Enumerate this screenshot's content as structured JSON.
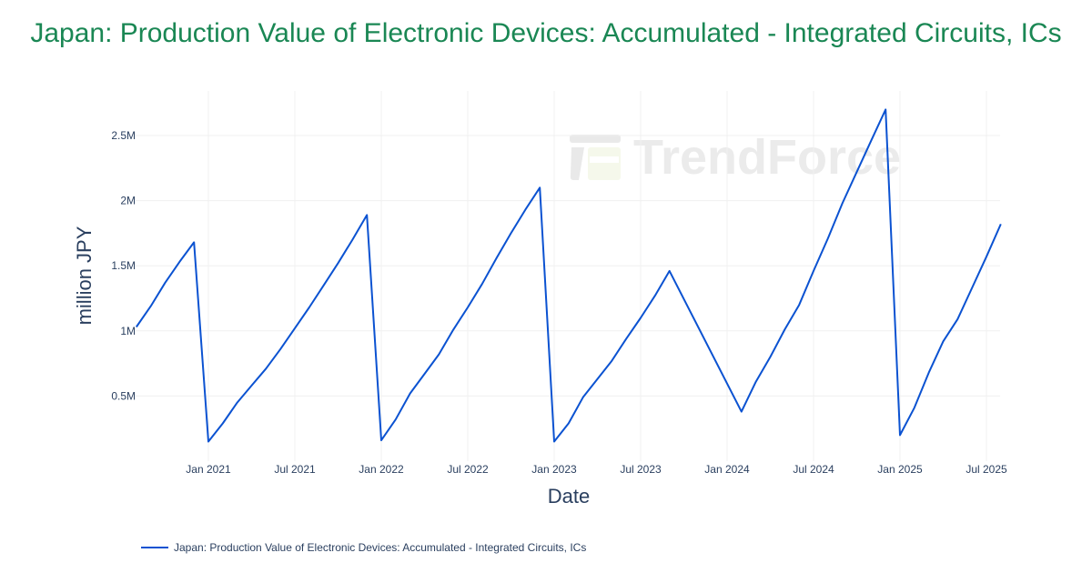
{
  "title": "Japan: Production Value of Electronic Devices: Accumulated - Integrated Circuits, ICs",
  "watermark": "TrendForce",
  "colors": {
    "title": "#1a8754",
    "line": "#0b52d1",
    "text": "#2a3f5f",
    "grid": "#f0f0f0"
  },
  "legend": {
    "label": "Japan: Production Value of Electronic Devices: Accumulated - Integrated Circuits, ICs"
  },
  "chart_data": {
    "type": "line",
    "title": "Japan: Production Value of Electronic Devices: Accumulated - Integrated Circuits, ICs",
    "xlabel": "Date",
    "ylabel": "million JPY",
    "x_ticks": [
      "Jan 2021",
      "Jul 2021",
      "Jan 2022",
      "Jul 2022",
      "Jan 2023",
      "Jul 2023",
      "Jan 2024",
      "Jul 2024",
      "Jan 2025",
      "Jul 2025"
    ],
    "y_ticks": [
      "0.5M",
      "1M",
      "1.5M",
      "2M",
      "2.5M"
    ],
    "y_tick_values": [
      500000,
      1000000,
      1500000,
      2000000,
      2500000
    ],
    "ylim": [
      0,
      2800000
    ],
    "grid": true,
    "legend_position": "bottom-left",
    "series": [
      {
        "name": "Japan: Production Value of Electronic Devices: Accumulated - Integrated Circuits, ICs",
        "x": [
          "2020-08",
          "2020-09",
          "2020-10",
          "2020-11",
          "2020-12",
          "2021-01",
          "2021-02",
          "2021-03",
          "2021-04",
          "2021-05",
          "2021-06",
          "2021-07",
          "2021-08",
          "2021-09",
          "2021-10",
          "2021-11",
          "2021-12",
          "2022-01",
          "2022-02",
          "2022-03",
          "2022-04",
          "2022-05",
          "2022-06",
          "2022-07",
          "2022-08",
          "2022-09",
          "2022-10",
          "2022-11",
          "2022-12",
          "2023-01",
          "2023-02",
          "2023-03",
          "2023-04",
          "2023-05",
          "2023-06",
          "2023-07",
          "2023-08",
          "2023-09",
          "2024-02",
          "2024-03",
          "2024-04",
          "2024-05",
          "2024-06",
          "2024-07",
          "2024-08",
          "2024-09",
          "2024-10",
          "2024-11",
          "2024-12",
          "2025-01",
          "2025-02",
          "2025-03",
          "2025-04",
          "2025-05",
          "2025-06",
          "2025-07",
          "2025-08"
        ],
        "values": [
          1030000,
          1190000,
          1370000,
          1530000,
          1680000,
          150000,
          290000,
          450000,
          580000,
          710000,
          860000,
          1020000,
          1180000,
          1350000,
          1520000,
          1700000,
          1890000,
          160000,
          320000,
          520000,
          670000,
          820000,
          1010000,
          1180000,
          1360000,
          1560000,
          1750000,
          1930000,
          2100000,
          150000,
          290000,
          490000,
          630000,
          770000,
          940000,
          1100000,
          1270000,
          1460000,
          380000,
          610000,
          800000,
          1010000,
          1200000,
          1460000,
          1710000,
          1980000,
          2220000,
          2460000,
          2700000,
          200000,
          410000,
          680000,
          920000,
          1090000,
          1330000,
          1570000,
          1820000
        ]
      }
    ]
  }
}
